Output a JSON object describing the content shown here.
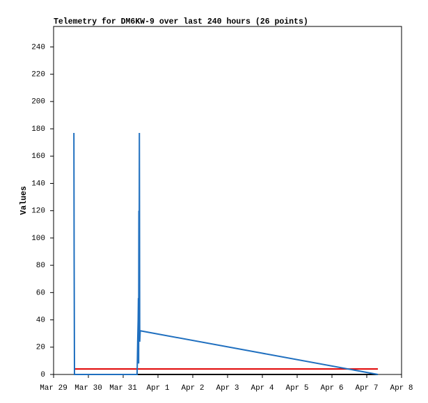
{
  "chart_data": {
    "type": "line",
    "title": "Telemetry for DM6KW-9 over last 240 hours (26 points)",
    "y_label": "Values",
    "xlim": [
      "Mar 29",
      "Apr 8"
    ],
    "xticks": [
      "Mar 29",
      "Mar 30",
      "Mar 31",
      "Apr 1",
      "Apr 2",
      "Apr 3",
      "Apr 4",
      "Apr 5",
      "Apr 6",
      "Apr 7",
      "Apr 8"
    ],
    "ylim": [
      0,
      255
    ],
    "yticks": [
      0,
      20,
      40,
      60,
      80,
      100,
      120,
      140,
      160,
      180,
      200,
      220,
      240
    ],
    "series": [
      {
        "color": "#1f6fbf",
        "x": [
          "Mar 29 14:00",
          "Mar 29 14:10",
          "Mar 29 14:25",
          "Mar 31 09:35",
          "Mar 31 09:45",
          "Mar 31 10:00",
          "Mar 31 10:20",
          "Mar 31 10:30",
          "Mar 31 10:40",
          "Mar 31 10:50",
          "Mar 31 11:00",
          "Mar 31 11:10",
          "Mar 31 11:25",
          "Mar 31 11:45",
          "Apr 7 07:40"
        ],
        "values": [
          177,
          88,
          0,
          0,
          8,
          24,
          40,
          56,
          8,
          120,
          24,
          177,
          24,
          32,
          0
        ]
      },
      {
        "color": "#e00000",
        "x": [
          "Mar 29 14:00",
          "Apr 7 07:40"
        ],
        "values": [
          4,
          4
        ]
      },
      {
        "color": "#000000",
        "x": [
          "Mar 29 14:00",
          "Apr 7 07:40"
        ],
        "values": [
          0,
          0
        ]
      }
    ]
  }
}
